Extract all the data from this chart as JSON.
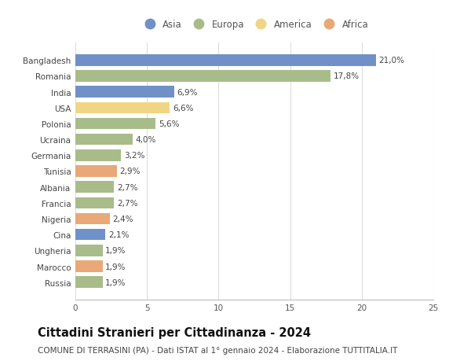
{
  "countries": [
    "Bangladesh",
    "Romania",
    "India",
    "USA",
    "Polonia",
    "Ucraina",
    "Germania",
    "Tunisia",
    "Albania",
    "Francia",
    "Nigeria",
    "Cina",
    "Ungheria",
    "Marocco",
    "Russia"
  ],
  "values": [
    21.0,
    17.8,
    6.9,
    6.6,
    5.6,
    4.0,
    3.2,
    2.9,
    2.7,
    2.7,
    2.4,
    2.1,
    1.9,
    1.9,
    1.9
  ],
  "labels": [
    "21,0%",
    "17,8%",
    "6,9%",
    "6,6%",
    "5,6%",
    "4,0%",
    "3,2%",
    "2,9%",
    "2,7%",
    "2,7%",
    "2,4%",
    "2,1%",
    "1,9%",
    "1,9%",
    "1,9%"
  ],
  "continents": [
    "Asia",
    "Europa",
    "Asia",
    "America",
    "Europa",
    "Europa",
    "Europa",
    "Africa",
    "Europa",
    "Europa",
    "Africa",
    "Asia",
    "Europa",
    "Africa",
    "Europa"
  ],
  "continent_colors": {
    "Asia": "#7090c8",
    "Europa": "#a8bc8a",
    "America": "#f0d585",
    "Africa": "#e8a878"
  },
  "legend_order": [
    "Asia",
    "Europa",
    "America",
    "Africa"
  ],
  "title": "Cittadini Stranieri per Cittadinanza - 2024",
  "subtitle": "COMUNE DI TERRASINI (PA) - Dati ISTAT al 1° gennaio 2024 - Elaborazione TUTTITALIA.IT",
  "xlim": [
    0,
    25
  ],
  "xticks": [
    0,
    5,
    10,
    15,
    20,
    25
  ],
  "background_color": "#ffffff",
  "grid_color": "#dddddd",
  "bar_height": 0.72,
  "title_fontsize": 10.5,
  "subtitle_fontsize": 7.5,
  "label_fontsize": 7.5,
  "tick_fontsize": 7.5,
  "legend_fontsize": 8.5
}
